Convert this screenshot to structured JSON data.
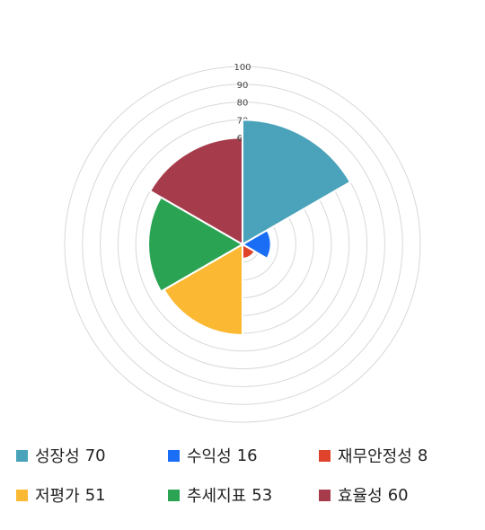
{
  "chart_data": {
    "type": "polar-area",
    "rmax": 100,
    "ticks": [
      60,
      70,
      80,
      90,
      100
    ],
    "categories": [
      "성장성",
      "수익성",
      "재무안정성",
      "저평가",
      "추세지표",
      "효율성"
    ],
    "values": [
      70,
      16,
      8,
      51,
      53,
      60
    ],
    "colors": [
      "#4aa3ba",
      "#1a6ef5",
      "#e0432b",
      "#fbb933",
      "#2aa453",
      "#a63c4b"
    ],
    "grid": true,
    "legend_position": "bottom"
  }
}
